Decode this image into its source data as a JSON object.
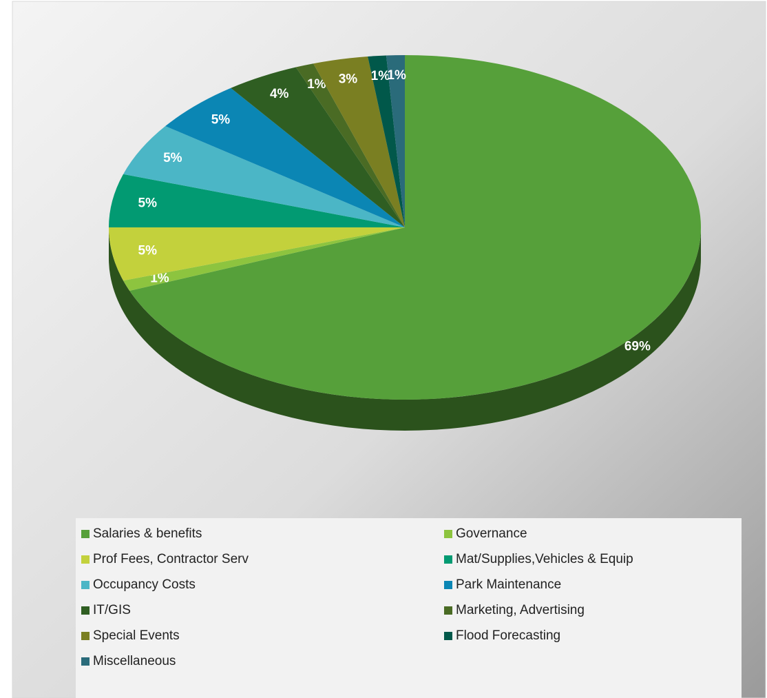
{
  "chart_data": {
    "type": "pie",
    "categories": [
      "Salaries & benefits",
      "Governance",
      "Prof Fees,  Contractor Serv",
      "Mat/Supplies,Vehicles & Equip",
      "Occupancy Costs",
      "Park Maintenance",
      "IT/GIS",
      "Marketing, Advertising",
      "Special Events",
      "Flood Forecasting",
      "Miscellaneous"
    ],
    "values": [
      69,
      1,
      5,
      5,
      5,
      5,
      4,
      1,
      3,
      1,
      1
    ],
    "value_labels": [
      "69%",
      "1%",
      "5%",
      "5%",
      "5%",
      "5%",
      "4%",
      "1%",
      "3%",
      "1%",
      "1%"
    ],
    "colors": [
      "#56a03a",
      "#8dc43f",
      "#c3d13c",
      "#029a72",
      "#4bb6c6",
      "#0b86b4",
      "#2f5e22",
      "#4a6b24",
      "#7a7f22",
      "#01584a",
      "#2a6b7a"
    ],
    "legend": "bottom"
  }
}
